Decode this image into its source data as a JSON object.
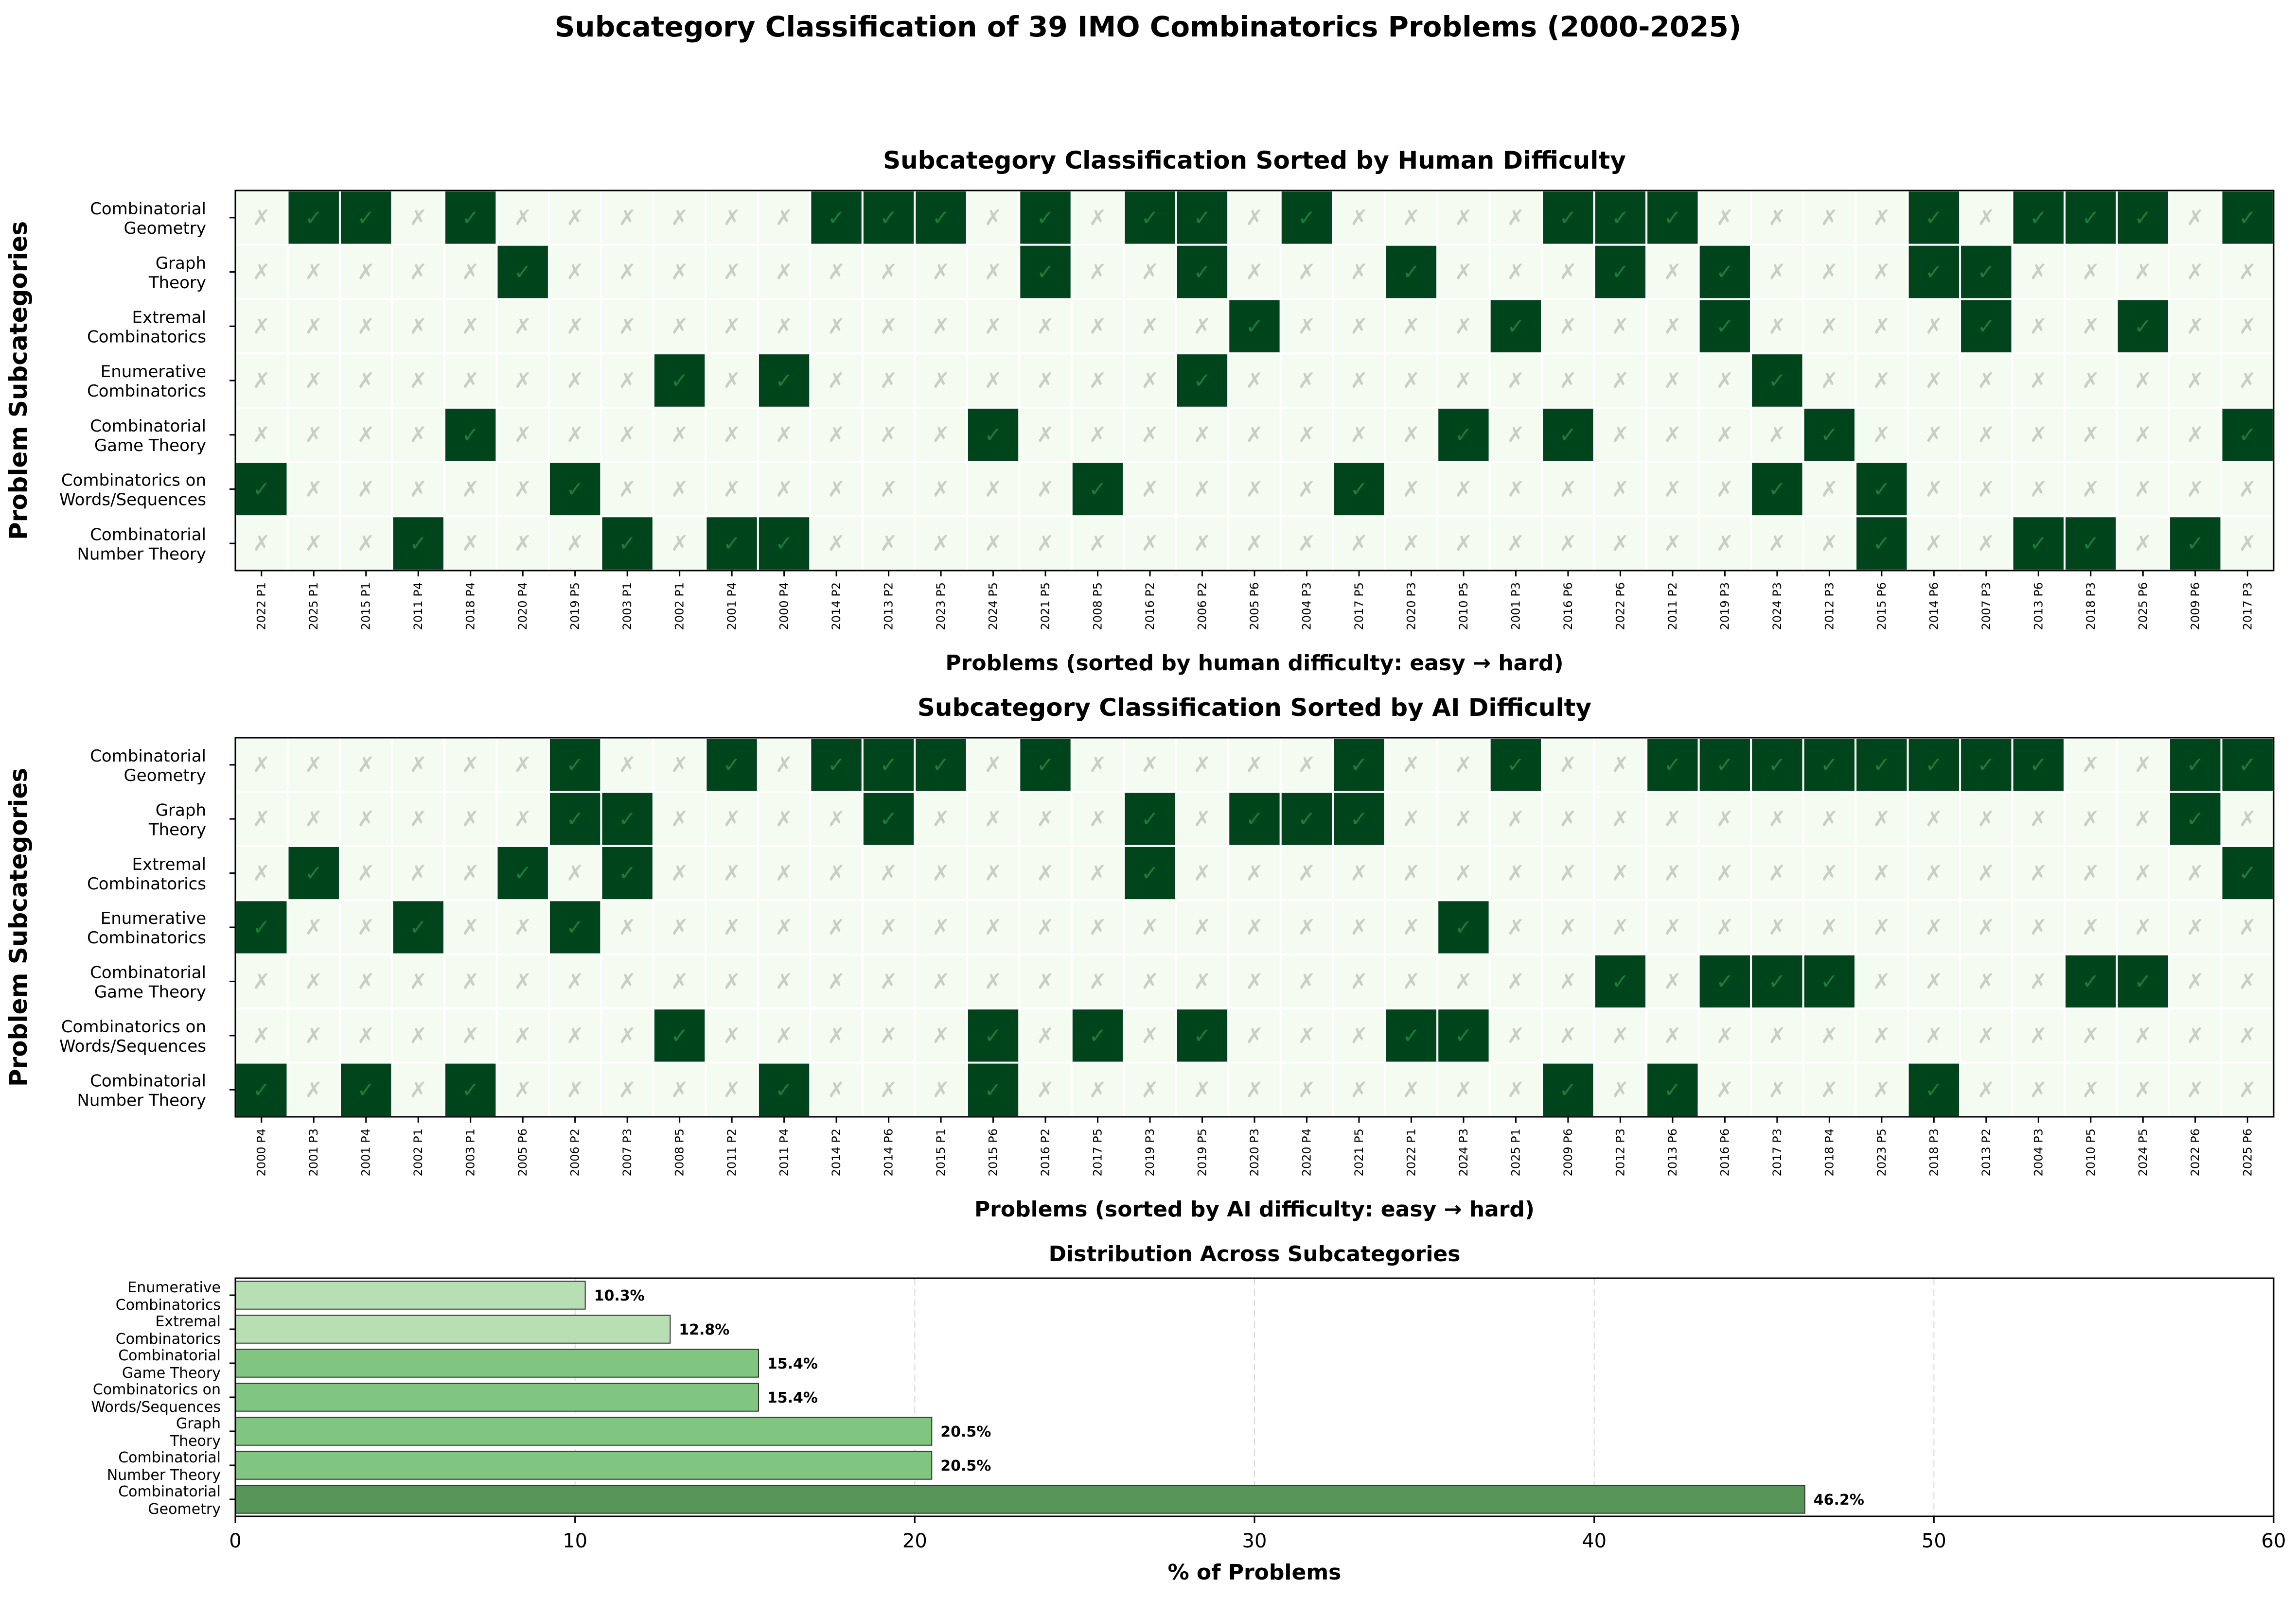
{
  "suptitle": "Subcategory Classification of 39 IMO Combinatorics Problems (2000-2025)",
  "colors": {
    "yes_fill": "#00441b",
    "no_fill": "#f4fbf1",
    "yes_mark": "#1c7d3b",
    "no_mark": "#c7cec3",
    "bar_light": "#b7dfb3",
    "bar_mid": "#80c580",
    "bar_dark": "#579458"
  },
  "symbols": {
    "yes": "✓",
    "no": "✗"
  },
  "chart_data": [
    {
      "type": "heatmap",
      "title": "Subcategory Classification Sorted by Human Difficulty",
      "xlabel": "Problems (sorted by human difficulty: easy → hard)",
      "ylabel": "Problem Subcategories",
      "rows": [
        "Combinatorial\nGeometry",
        "Graph\nTheory",
        "Extremal\nCombinatorics",
        "Enumerative\nCombinatorics",
        "Combinatorial\nGame Theory",
        "Combinatorics on\nWords/Sequences",
        "Combinatorial\nNumber Theory"
      ],
      "columns": [
        "2022 P1",
        "2025 P1",
        "2015 P1",
        "2011 P4",
        "2018 P4",
        "2020 P4",
        "2019 P5",
        "2003 P1",
        "2002 P1",
        "2001 P4",
        "2000 P4",
        "2014 P2",
        "2013 P2",
        "2023 P5",
        "2024 P5",
        "2021 P5",
        "2008 P5",
        "2016 P2",
        "2006 P2",
        "2005 P6",
        "2004 P3",
        "2017 P5",
        "2020 P3",
        "2010 P5",
        "2001 P3",
        "2016 P6",
        "2022 P6",
        "2011 P2",
        "2019 P3",
        "2024 P3",
        "2012 P3",
        "2015 P6",
        "2014 P6",
        "2007 P3",
        "2013 P6",
        "2018 P3",
        "2025 P6",
        "2009 P6",
        "2017 P3"
      ],
      "values": [
        [
          0,
          1,
          1,
          0,
          1,
          0,
          0,
          0,
          0,
          0,
          0,
          1,
          1,
          1,
          0,
          1,
          0,
          1,
          1,
          0,
          1,
          0,
          0,
          0,
          0,
          1,
          1,
          1,
          0,
          0,
          0,
          0,
          1,
          0,
          1,
          1,
          1,
          0,
          1
        ],
        [
          0,
          0,
          0,
          0,
          0,
          1,
          0,
          0,
          0,
          0,
          0,
          0,
          0,
          0,
          0,
          1,
          0,
          0,
          1,
          0,
          0,
          0,
          1,
          0,
          0,
          0,
          1,
          0,
          1,
          0,
          0,
          0,
          1,
          1,
          0,
          0,
          0,
          0,
          0
        ],
        [
          0,
          0,
          0,
          0,
          0,
          0,
          0,
          0,
          0,
          0,
          0,
          0,
          0,
          0,
          0,
          0,
          0,
          0,
          0,
          1,
          0,
          0,
          0,
          0,
          1,
          0,
          0,
          0,
          1,
          0,
          0,
          0,
          0,
          1,
          0,
          0,
          1,
          0,
          0
        ],
        [
          0,
          0,
          0,
          0,
          0,
          0,
          0,
          0,
          1,
          0,
          1,
          0,
          0,
          0,
          0,
          0,
          0,
          0,
          1,
          0,
          0,
          0,
          0,
          0,
          0,
          0,
          0,
          0,
          0,
          1,
          0,
          0,
          0,
          0,
          0,
          0,
          0,
          0,
          0
        ],
        [
          0,
          0,
          0,
          0,
          1,
          0,
          0,
          0,
          0,
          0,
          0,
          0,
          0,
          0,
          1,
          0,
          0,
          0,
          0,
          0,
          0,
          0,
          0,
          1,
          0,
          1,
          0,
          0,
          0,
          0,
          1,
          0,
          0,
          0,
          0,
          0,
          0,
          0,
          1
        ],
        [
          1,
          0,
          0,
          0,
          0,
          0,
          1,
          0,
          0,
          0,
          0,
          0,
          0,
          0,
          0,
          0,
          1,
          0,
          0,
          0,
          0,
          1,
          0,
          0,
          0,
          0,
          0,
          0,
          0,
          1,
          0,
          1,
          0,
          0,
          0,
          0,
          0,
          0,
          0
        ],
        [
          0,
          0,
          0,
          1,
          0,
          0,
          0,
          1,
          0,
          1,
          1,
          0,
          0,
          0,
          0,
          0,
          0,
          0,
          0,
          0,
          0,
          0,
          0,
          0,
          0,
          0,
          0,
          0,
          0,
          0,
          0,
          1,
          0,
          0,
          1,
          1,
          0,
          1,
          0
        ]
      ]
    },
    {
      "type": "heatmap",
      "title": "Subcategory Classification Sorted by AI Difficulty",
      "xlabel": "Problems (sorted by AI difficulty: easy → hard)",
      "ylabel": "Problem Subcategories",
      "rows": [
        "Combinatorial\nGeometry",
        "Graph\nTheory",
        "Extremal\nCombinatorics",
        "Enumerative\nCombinatorics",
        "Combinatorial\nGame Theory",
        "Combinatorics on\nWords/Sequences",
        "Combinatorial\nNumber Theory"
      ],
      "columns": [
        "2000 P4",
        "2001 P3",
        "2001 P4",
        "2002 P1",
        "2003 P1",
        "2005 P6",
        "2006 P2",
        "2007 P3",
        "2008 P5",
        "2011 P2",
        "2011 P4",
        "2014 P2",
        "2014 P6",
        "2015 P1",
        "2015 P6",
        "2016 P2",
        "2017 P5",
        "2019 P3",
        "2019 P5",
        "2020 P3",
        "2020 P4",
        "2021 P5",
        "2022 P1",
        "2024 P3",
        "2025 P1",
        "2009 P6",
        "2012 P3",
        "2013 P6",
        "2016 P6",
        "2017 P3",
        "2018 P4",
        "2023 P5",
        "2018 P3",
        "2013 P2",
        "2004 P3",
        "2010 P5",
        "2024 P5",
        "2022 P6",
        "2025 P6"
      ],
      "values": [
        [
          0,
          0,
          0,
          0,
          0,
          0,
          1,
          0,
          0,
          1,
          0,
          1,
          1,
          1,
          0,
          1,
          0,
          0,
          0,
          0,
          0,
          1,
          0,
          0,
          1,
          0,
          0,
          1,
          1,
          1,
          1,
          1,
          1,
          1,
          1,
          0,
          0,
          1,
          1
        ],
        [
          0,
          0,
          0,
          0,
          0,
          0,
          1,
          1,
          0,
          0,
          0,
          0,
          1,
          0,
          0,
          0,
          0,
          1,
          0,
          1,
          1,
          1,
          0,
          0,
          0,
          0,
          0,
          0,
          0,
          0,
          0,
          0,
          0,
          0,
          0,
          0,
          0,
          1,
          0
        ],
        [
          0,
          1,
          0,
          0,
          0,
          1,
          0,
          1,
          0,
          0,
          0,
          0,
          0,
          0,
          0,
          0,
          0,
          1,
          0,
          0,
          0,
          0,
          0,
          0,
          0,
          0,
          0,
          0,
          0,
          0,
          0,
          0,
          0,
          0,
          0,
          0,
          0,
          0,
          1
        ],
        [
          1,
          0,
          0,
          1,
          0,
          0,
          1,
          0,
          0,
          0,
          0,
          0,
          0,
          0,
          0,
          0,
          0,
          0,
          0,
          0,
          0,
          0,
          0,
          1,
          0,
          0,
          0,
          0,
          0,
          0,
          0,
          0,
          0,
          0,
          0,
          0,
          0,
          0,
          0
        ],
        [
          0,
          0,
          0,
          0,
          0,
          0,
          0,
          0,
          0,
          0,
          0,
          0,
          0,
          0,
          0,
          0,
          0,
          0,
          0,
          0,
          0,
          0,
          0,
          0,
          0,
          0,
          1,
          0,
          1,
          1,
          1,
          0,
          0,
          0,
          0,
          1,
          1,
          0,
          0
        ],
        [
          0,
          0,
          0,
          0,
          0,
          0,
          0,
          0,
          1,
          0,
          0,
          0,
          0,
          0,
          1,
          0,
          1,
          0,
          1,
          0,
          0,
          0,
          1,
          1,
          0,
          0,
          0,
          0,
          0,
          0,
          0,
          0,
          0,
          0,
          0,
          0,
          0,
          0,
          0
        ],
        [
          1,
          0,
          1,
          0,
          1,
          0,
          0,
          0,
          0,
          0,
          1,
          0,
          0,
          0,
          1,
          0,
          0,
          0,
          0,
          0,
          0,
          0,
          0,
          0,
          0,
          1,
          0,
          1,
          0,
          0,
          0,
          0,
          1,
          0,
          0,
          0,
          0,
          0,
          0
        ]
      ]
    },
    {
      "type": "bar",
      "orientation": "horizontal",
      "title": "Distribution Across Subcategories",
      "xlabel": "% of Problems",
      "xlim": [
        0,
        60
      ],
      "xticks": [
        0,
        10,
        20,
        30,
        40,
        50,
        60
      ],
      "grid": "x-dashed",
      "categories": [
        "Enumerative\nCombinatorics",
        "Extremal\nCombinatorics",
        "Combinatorial\nGame Theory",
        "Combinatorics on\nWords/Sequences",
        "Graph\nTheory",
        "Combinatorial\nNumber Theory",
        "Combinatorial\nGeometry"
      ],
      "values": [
        10.3,
        12.8,
        15.4,
        15.4,
        20.5,
        20.5,
        46.2
      ],
      "labels": [
        "10.3%",
        "12.8%",
        "15.4%",
        "15.4%",
        "20.5%",
        "20.5%",
        "46.2%"
      ]
    }
  ]
}
